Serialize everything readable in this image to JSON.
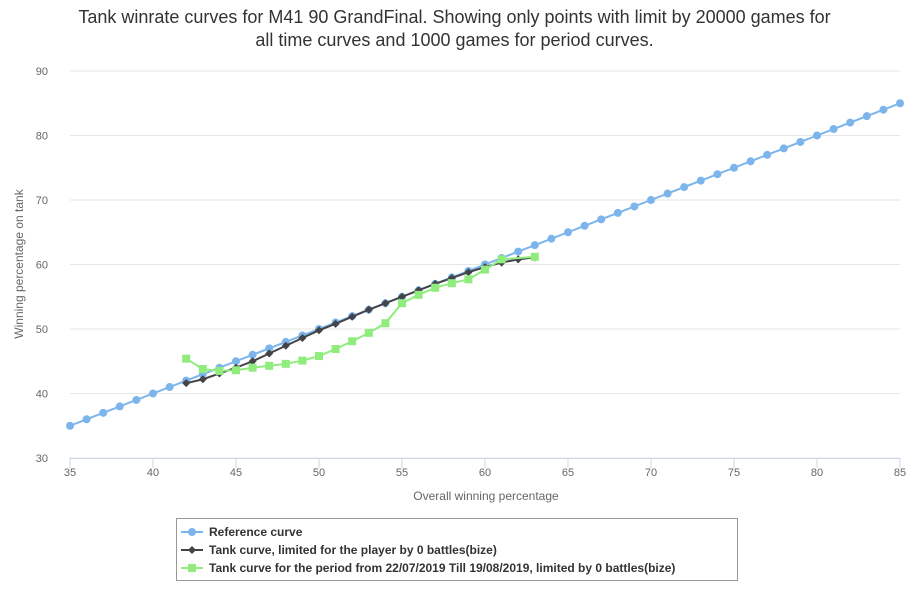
{
  "chart_data": {
    "type": "line",
    "title_lines": [
      "Tank winrate curves for M41 90 GrandFinal. Showing only points with limit by 20000 games for",
      "all time curves and 1000 games for period curves."
    ],
    "xlabel": "Overall winning percentage",
    "ylabel": "Winning percentage on tank",
    "xlim": [
      35,
      85
    ],
    "ylim": [
      30,
      90
    ],
    "x_ticks": [
      "35",
      "40",
      "45",
      "50",
      "55",
      "60",
      "65",
      "70",
      "75",
      "80",
      "85"
    ],
    "y_ticks": [
      "30",
      "40",
      "50",
      "60",
      "70",
      "80",
      "90"
    ],
    "grid": true,
    "legend_position": "bottom-center",
    "series": [
      {
        "name": "Reference curve",
        "color": "#7cb5ec",
        "marker": "circle",
        "x": [
          35,
          36,
          37,
          38,
          39,
          40,
          41,
          42,
          43,
          44,
          45,
          46,
          47,
          48,
          49,
          50,
          51,
          52,
          53,
          54,
          55,
          56,
          57,
          58,
          59,
          60,
          61,
          62,
          63,
          64,
          65,
          66,
          67,
          68,
          69,
          70,
          71,
          72,
          73,
          74,
          75,
          76,
          77,
          78,
          79,
          80,
          81,
          82,
          83,
          84,
          85
        ],
        "y": [
          35,
          36,
          37,
          38,
          39,
          40,
          41,
          42,
          43,
          44,
          45,
          46,
          47,
          48,
          49,
          50,
          51,
          52,
          53,
          54,
          55,
          56,
          57,
          58,
          59,
          60,
          61,
          62,
          63,
          64,
          65,
          66,
          67,
          68,
          69,
          70,
          71,
          72,
          73,
          74,
          75,
          76,
          77,
          78,
          79,
          80,
          81,
          82,
          83,
          84,
          85
        ]
      },
      {
        "name": "Tank curve, limited for the player by 0 battles(bize)",
        "color": "#434348",
        "marker": "diamond",
        "x": [
          42,
          43,
          44,
          45,
          46,
          47,
          48,
          49,
          50,
          51,
          52,
          53,
          54,
          55,
          56,
          57,
          58,
          59,
          60,
          61,
          62,
          63
        ],
        "y": [
          41.6,
          42.2,
          43.1,
          44.0,
          45.0,
          46.2,
          47.4,
          48.6,
          49.8,
          50.8,
          51.9,
          53.0,
          54.0,
          55.0,
          56.0,
          57.0,
          57.9,
          58.8,
          59.6,
          60.3,
          60.8,
          61.1
        ]
      },
      {
        "name": "Tank curve for the period from 22/07/2019 Till 19/08/2019, limited by 0 battles(bize)",
        "color": "#90ed7d",
        "marker": "square",
        "x": [
          42,
          43,
          44,
          45,
          46,
          47,
          48,
          49,
          50,
          51,
          52,
          53,
          54,
          55,
          56,
          57,
          58,
          59,
          60,
          61,
          62,
          63
        ],
        "y": [
          45.4,
          43.8,
          43.5,
          43.6,
          44.0,
          44.3,
          44.6,
          45.1,
          45.8,
          46.9,
          48.1,
          49.4,
          50.9,
          54.0,
          55.3,
          56.4,
          57.1,
          57.7,
          59.2,
          60.8,
          null,
          61.2
        ]
      }
    ]
  }
}
